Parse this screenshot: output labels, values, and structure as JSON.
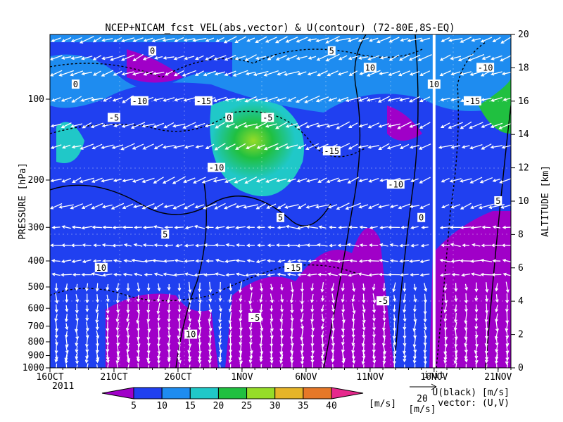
{
  "chart_data": {
    "type": "heatmap",
    "title": "NCEP+NICAM_fcst VEL(abs,vector) & U(contour)  (72-80E,8S-EQ)",
    "ylabel_left": "PRESSURE [hPa]",
    "ylabel_right": "ALTITUDE [km]",
    "x_ticks": [
      "16OCT",
      "21OCT",
      "26OCT",
      "1NOV",
      "6NOV",
      "11NOV",
      "16NOV",
      "21NOV"
    ],
    "x_year": "2011",
    "x_range_days": [
      0,
      36
    ],
    "init_day": 30,
    "init_label": "init",
    "pressure_ticks": [
      100,
      200,
      300,
      400,
      500,
      600,
      700,
      800,
      900,
      1000
    ],
    "altitude_ticks": [
      0,
      2,
      4,
      6,
      8,
      10,
      12,
      14,
      16,
      18,
      20
    ],
    "colorbar": {
      "levels": [
        5,
        10,
        15,
        20,
        25,
        30,
        35,
        40
      ],
      "colors": [
        "#a000c8",
        "#2040f0",
        "#1e8cf0",
        "#20c8c8",
        "#20c040",
        "#96dc28",
        "#e6b428",
        "#e67828",
        "#e6288c"
      ],
      "unit": "[m/s]"
    },
    "vector_key": {
      "value": "20",
      "unit": "[m/s]"
    },
    "legend": {
      "line1": "U(black) [m/s]",
      "line2": "vector: (U,V)"
    },
    "contour_labels": [
      "0",
      "-5",
      "-10",
      "-15",
      "5",
      "10"
    ],
    "samples": [
      {
        "day": 1,
        "alt": 2,
        "speed": 4
      },
      {
        "day": 4,
        "alt": 4,
        "speed": 3
      },
      {
        "day": 5,
        "alt": 10,
        "speed": 14
      },
      {
        "day": 10,
        "alt": 13,
        "speed": 12
      },
      {
        "day": 14,
        "alt": 14,
        "speed": 22
      },
      {
        "day": 14,
        "alt": 12,
        "speed": 18
      },
      {
        "day": 17,
        "alt": 3,
        "speed": 4
      },
      {
        "day": 22,
        "alt": 5,
        "speed": 3
      },
      {
        "day": 26,
        "alt": 7,
        "speed": 4
      },
      {
        "day": 33,
        "alt": 3,
        "speed": 3
      },
      {
        "day": 35,
        "alt": 17,
        "speed": 6
      }
    ]
  },
  "colors": {
    "axis": "#000000",
    "init_line": "#ffffff",
    "init_text": "#00c000"
  }
}
